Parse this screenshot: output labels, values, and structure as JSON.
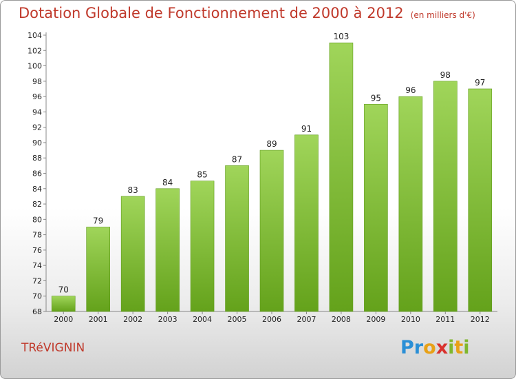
{
  "chart_data": {
    "type": "bar",
    "title": "Dotation Globale de Fonctionnement de 2000 à 2012",
    "unit_note": "(en milliers d'€)",
    "categories": [
      "2000",
      "2001",
      "2002",
      "2003",
      "2004",
      "2005",
      "2006",
      "2007",
      "2008",
      "2009",
      "2010",
      "2011",
      "2012"
    ],
    "values": [
      70,
      79,
      83,
      84,
      85,
      87,
      89,
      91,
      103,
      95,
      96,
      98,
      97
    ],
    "ylim": [
      68,
      104
    ],
    "yticks": [
      68,
      70,
      72,
      74,
      76,
      78,
      80,
      82,
      84,
      86,
      88,
      90,
      92,
      94,
      96,
      98,
      100,
      102,
      104
    ],
    "bar_color": "#7dc12e",
    "bar_color_light": "#a0d55a",
    "grid": false,
    "legend": "none"
  },
  "footer": {
    "town": "TRéVIGNIN",
    "logo_letters": [
      "P",
      "r",
      "o",
      "x",
      "i",
      "t",
      "i"
    ],
    "logo_colors": [
      "#2a8fd6",
      "#2a8fd6",
      "#e8a117",
      "#d9322e",
      "#7fb72e",
      "#e8a117",
      "#7fb72e"
    ]
  }
}
